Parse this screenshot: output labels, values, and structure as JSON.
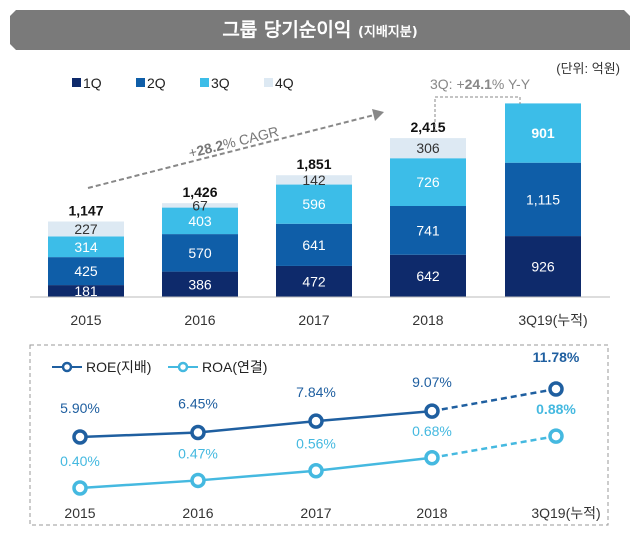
{
  "title": "그룹 당기순이익",
  "title_sub": "(지배지분)",
  "chart_data": [
    {
      "type": "bar",
      "stacked": true,
      "unit": "(단위: 억원)",
      "categories": [
        "2015",
        "2016",
        "2017",
        "2018",
        "3Q19(누적)"
      ],
      "series": [
        {
          "name": "1Q",
          "color": "#0e2a6b",
          "values": [
            181,
            386,
            472,
            642,
            926
          ]
        },
        {
          "name": "2Q",
          "color": "#0f5ea8",
          "values": [
            425,
            570,
            641,
            741,
            1115
          ]
        },
        {
          "name": "3Q",
          "color": "#3cbde8",
          "values": [
            314,
            403,
            596,
            726,
            901
          ]
        },
        {
          "name": "4Q",
          "color": "#dde9f3",
          "values": [
            227,
            67,
            142,
            306,
            null
          ]
        }
      ],
      "totals": [
        "1,147",
        "1,426",
        "1,851",
        "2,415",
        null
      ],
      "annotations": {
        "cagr_prefix": "+",
        "cagr_value": "28.2",
        "cagr_suffix": "% CAGR",
        "yoy_prefix": "3Q: +",
        "yoy_value": "24.1",
        "yoy_suffix": "% Y-Y"
      }
    },
    {
      "type": "line",
      "categories": [
        "2015",
        "2016",
        "2017",
        "2018",
        "3Q19(누적)"
      ],
      "series": [
        {
          "name": "ROE(지배)",
          "color": "#1f5fa0",
          "values": [
            5.9,
            6.45,
            7.84,
            9.07,
            11.78
          ],
          "labels": [
            "5.90%",
            "6.45%",
            "7.84%",
            "9.07%",
            "11.78%"
          ]
        },
        {
          "name": "ROA(연결)",
          "color": "#45b9e0",
          "values": [
            0.4,
            0.47,
            0.56,
            0.68,
            0.88
          ],
          "labels": [
            "0.40%",
            "0.47%",
            "0.56%",
            "0.68%",
            "0.88%"
          ]
        }
      ],
      "last_segment": "dashed"
    }
  ]
}
